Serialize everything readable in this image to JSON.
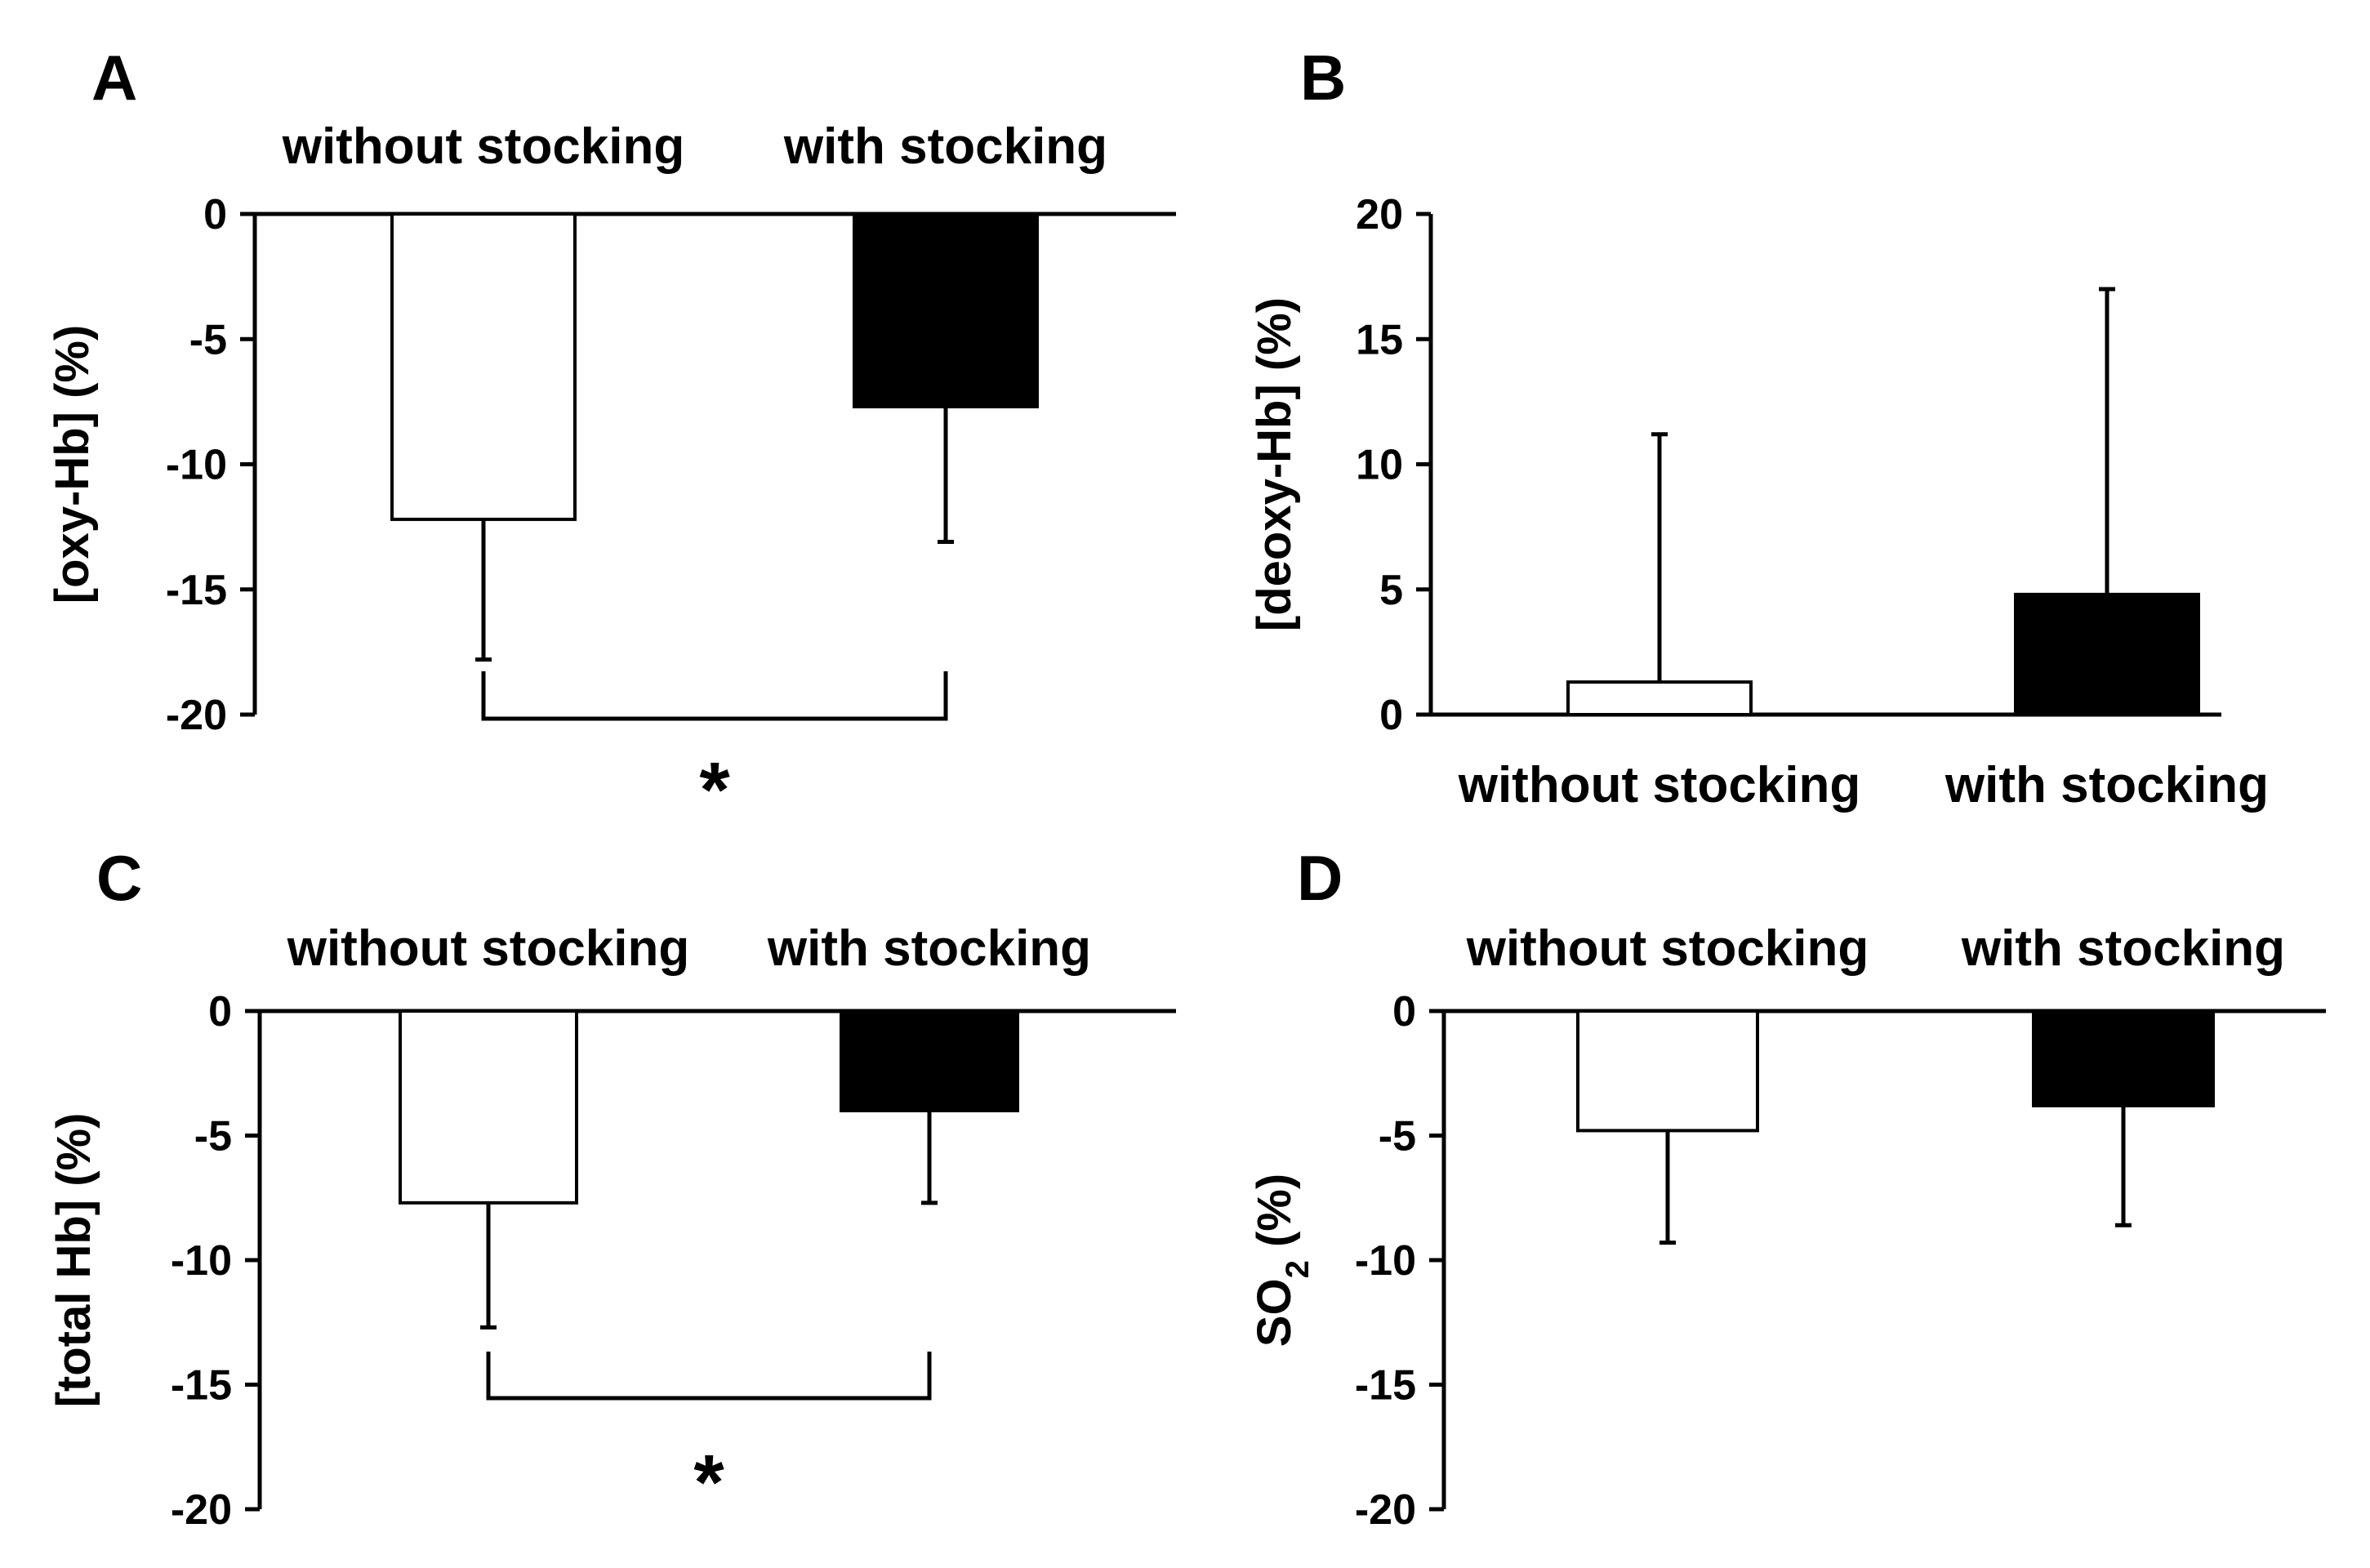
{
  "figure": {
    "background": "#ffffff",
    "ink": "#000000"
  },
  "chart_data": [
    {
      "panel": "A",
      "type": "bar",
      "categories": [
        "without stocking",
        "with stocking"
      ],
      "values": [
        -12.2,
        -7.7
      ],
      "error_bars": [
        5.6,
        5.4
      ],
      "fills": [
        "#ffffff",
        "#000000"
      ],
      "ylabel": "[oxy-Hb] (%)",
      "ylim": [
        -20,
        0
      ],
      "yticks": [
        0,
        -5,
        -10,
        -15,
        -20
      ],
      "category_labels_position": "top",
      "significance": {
        "between": [
          0,
          1
        ],
        "label": "*"
      }
    },
    {
      "panel": "B",
      "type": "bar",
      "categories": [
        "without stocking",
        "with stocking"
      ],
      "values": [
        1.3,
        4.8
      ],
      "error_bars": [
        9.9,
        12.2
      ],
      "fills": [
        "#ffffff",
        "#000000"
      ],
      "ylabel": "[deoxy-Hb] (%)",
      "ylim": [
        0,
        20
      ],
      "yticks": [
        20,
        15,
        10,
        5,
        0
      ],
      "category_labels_position": "bottom",
      "significance": null
    },
    {
      "panel": "C",
      "type": "bar",
      "categories": [
        "without stocking",
        "with stocking"
      ],
      "values": [
        -7.7,
        -4.0
      ],
      "error_bars": [
        5.0,
        3.7
      ],
      "fills": [
        "#ffffff",
        "#000000"
      ],
      "ylabel": "[total Hb] (%)",
      "ylim": [
        -20,
        0
      ],
      "yticks": [
        0,
        -5,
        -10,
        -15,
        -20
      ],
      "category_labels_position": "top",
      "significance": {
        "between": [
          0,
          1
        ],
        "label": "*"
      }
    },
    {
      "panel": "D",
      "type": "bar",
      "categories": [
        "without stocking",
        "with stocking"
      ],
      "values": [
        -4.8,
        -3.8
      ],
      "error_bars": [
        4.5,
        4.8
      ],
      "fills": [
        "#ffffff",
        "#000000"
      ],
      "ylabel": "SO",
      "ylabel_subscript": "2",
      "ylabel_suffix": " (%)",
      "ylim": [
        -20,
        0
      ],
      "yticks": [
        0,
        -5,
        -10,
        -15,
        -20
      ],
      "category_labels_position": "top",
      "significance": null
    }
  ]
}
